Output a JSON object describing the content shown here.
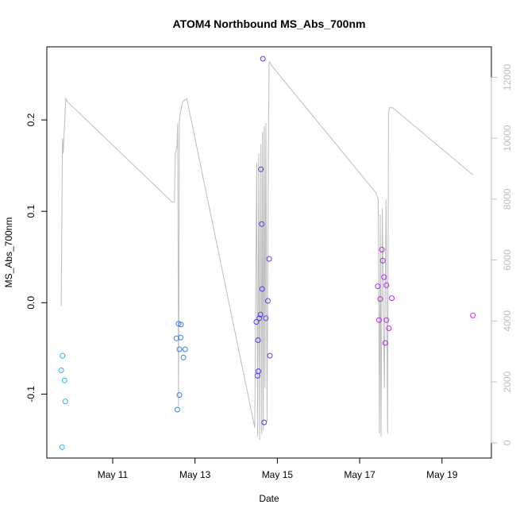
{
  "chart_data": {
    "type": "scatter",
    "title": "ATOM4 Northbound MS_Abs_700nm",
    "xlabel": "Date",
    "ylabel": "MS_Abs_700nm",
    "x_axis": {
      "ticks": [
        {
          "value": 11,
          "label": "May 11"
        },
        {
          "value": 13,
          "label": "May 13"
        },
        {
          "value": 15,
          "label": "May 15"
        },
        {
          "value": 17,
          "label": "May 17"
        },
        {
          "value": 19,
          "label": "May 19"
        }
      ],
      "xlim": [
        9.4,
        20.2
      ]
    },
    "y_axis_left": {
      "ticks": [
        {
          "value": -0.1,
          "label": "-0.1"
        },
        {
          "value": 0.0,
          "label": "0.0"
        },
        {
          "value": 0.1,
          "label": "0.1"
        },
        {
          "value": 0.2,
          "label": "0.2"
        }
      ],
      "ylim": [
        -0.17,
        0.28
      ]
    },
    "y_axis_right": {
      "ticks": [
        {
          "value": 0,
          "label": "0"
        },
        {
          "value": 2000,
          "label": "2000"
        },
        {
          "value": 4000,
          "label": "4000"
        },
        {
          "value": 6000,
          "label": "6000"
        },
        {
          "value": 8000,
          "label": "8000"
        },
        {
          "value": 10000,
          "label": "10000"
        },
        {
          "value": 12000,
          "label": "12000"
        }
      ],
      "ylim": [
        -500,
        13000
      ],
      "color": "#bdbdbd"
    },
    "grid": false,
    "points": [
      {
        "x": 9.75,
        "y": -0.074,
        "color": "#29b6f6"
      },
      {
        "x": 9.78,
        "y": -0.058,
        "color": "#29b6f6"
      },
      {
        "x": 9.83,
        "y": -0.085,
        "color": "#29b6f6"
      },
      {
        "x": 9.85,
        "y": -0.108,
        "color": "#29b6f6"
      },
      {
        "x": 9.77,
        "y": -0.158,
        "color": "#29b6f6"
      },
      {
        "x": 12.55,
        "y": -0.039,
        "color": "#3f7de6"
      },
      {
        "x": 12.6,
        "y": -0.023,
        "color": "#3f7de6"
      },
      {
        "x": 12.66,
        "y": -0.024,
        "color": "#3f7de6"
      },
      {
        "x": 12.65,
        "y": -0.038,
        "color": "#3f7de6"
      },
      {
        "x": 12.62,
        "y": -0.051,
        "color": "#3f7de6"
      },
      {
        "x": 12.76,
        "y": -0.051,
        "color": "#3f7de6"
      },
      {
        "x": 12.72,
        "y": -0.06,
        "color": "#3f7de6"
      },
      {
        "x": 12.62,
        "y": -0.101,
        "color": "#3f7de6"
      },
      {
        "x": 12.57,
        "y": -0.117,
        "color": "#3f7de6"
      },
      {
        "x": 14.65,
        "y": 0.267,
        "color": "#4a3ef0"
      },
      {
        "x": 14.6,
        "y": 0.146,
        "color": "#4a3ef0"
      },
      {
        "x": 14.62,
        "y": 0.086,
        "color": "#4a3ef0"
      },
      {
        "x": 14.8,
        "y": 0.048,
        "color": "#6b3ef0"
      },
      {
        "x": 14.63,
        "y": 0.015,
        "color": "#4a3ef0"
      },
      {
        "x": 14.77,
        "y": 0.002,
        "color": "#6b3ef0"
      },
      {
        "x": 14.59,
        "y": -0.013,
        "color": "#4a3ef0"
      },
      {
        "x": 14.56,
        "y": -0.017,
        "color": "#4a3ef0"
      },
      {
        "x": 14.72,
        "y": -0.017,
        "color": "#6b3ef0"
      },
      {
        "x": 14.49,
        "y": -0.021,
        "color": "#4a3ef0"
      },
      {
        "x": 14.53,
        "y": -0.041,
        "color": "#4a3ef0"
      },
      {
        "x": 14.82,
        "y": -0.058,
        "color": "#6b3ef0"
      },
      {
        "x": 14.54,
        "y": -0.075,
        "color": "#4a3ef0"
      },
      {
        "x": 14.52,
        "y": -0.08,
        "color": "#4a3ef0"
      },
      {
        "x": 14.68,
        "y": -0.131,
        "color": "#4a3ef0"
      },
      {
        "x": 17.54,
        "y": 0.058,
        "color": "#b02ee8"
      },
      {
        "x": 17.56,
        "y": 0.046,
        "color": "#b02ee8"
      },
      {
        "x": 17.59,
        "y": 0.028,
        "color": "#b02ee8"
      },
      {
        "x": 17.44,
        "y": 0.018,
        "color": "#b02ee8"
      },
      {
        "x": 17.65,
        "y": 0.019,
        "color": "#b02ee8"
      },
      {
        "x": 17.5,
        "y": 0.004,
        "color": "#b02ee8"
      },
      {
        "x": 17.78,
        "y": 0.005,
        "color": "#b02ee8"
      },
      {
        "x": 17.47,
        "y": -0.019,
        "color": "#b02ee8"
      },
      {
        "x": 17.65,
        "y": -0.019,
        "color": "#b02ee8"
      },
      {
        "x": 17.71,
        "y": -0.028,
        "color": "#b02ee8"
      },
      {
        "x": 17.62,
        "y": -0.044,
        "color": "#b02ee8"
      },
      {
        "x": 19.75,
        "y": -0.014,
        "color": "#d02fd8"
      }
    ],
    "right_series": {
      "name": "",
      "color": "#bdbdbd",
      "x": [
        9.75,
        9.78,
        9.8,
        9.82,
        9.86,
        9.9,
        12.45,
        12.5,
        12.52,
        12.56,
        12.58,
        12.6,
        12.62,
        12.64,
        12.7,
        12.8,
        14.45,
        14.5,
        14.52,
        14.55,
        14.57,
        14.6,
        14.62,
        14.64,
        14.66,
        14.68,
        14.7,
        14.72,
        14.75,
        14.78,
        14.8,
        14.82,
        14.85,
        17.4,
        17.45,
        17.48,
        17.5,
        17.52,
        17.55,
        17.6,
        17.64,
        17.68,
        17.7,
        17.72,
        17.75,
        17.8,
        19.75
      ],
      "y": [
        4500,
        10000,
        9500,
        10200,
        11300,
        11200,
        7900,
        7900,
        9500,
        9700,
        10500,
        1200,
        10600,
        10800,
        11200,
        11300,
        500,
        9200,
        200,
        9500,
        100,
        9800,
        300,
        10200,
        400,
        10400,
        1800,
        10500,
        700,
        9300,
        12500,
        12500,
        12400,
        8200,
        8000,
        300,
        7500,
        200,
        7700,
        1800,
        8000,
        300,
        10800,
        11000,
        11000,
        11000,
        8800
      ]
    }
  }
}
